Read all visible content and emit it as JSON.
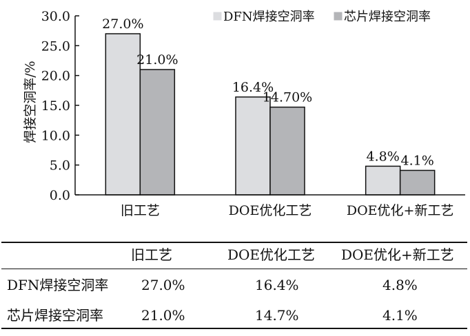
{
  "chart_data": {
    "type": "bar",
    "categories": [
      "旧工艺",
      "DOE优化工艺",
      "DOE优化+新工艺"
    ],
    "series": [
      {
        "name": "DFN焊接空洞率",
        "values": [
          27.0,
          16.4,
          4.8
        ],
        "labels": [
          "27.0%",
          "16.4%",
          "4.8%"
        ],
        "color": "#dcdde0"
      },
      {
        "name": "芯片焊接空洞率",
        "values": [
          21.0,
          14.7,
          4.1
        ],
        "labels": [
          "21.0%",
          "14.70%",
          "4.1%"
        ],
        "color": "#b4b5b8"
      }
    ],
    "ylabel": "焊接空洞率/%",
    "xlabel": "",
    "ylim": [
      0,
      30
    ],
    "yticks": [
      "0.0",
      "5.0",
      "10.0",
      "15.0",
      "20.0",
      "25.0",
      "30.0"
    ],
    "grid": false,
    "legend": "top-right"
  },
  "table": {
    "headers": [
      "旧工艺",
      "DOE优化工艺",
      "DOE优化+新工艺"
    ],
    "rows": [
      {
        "name": "DFN焊接空洞率",
        "values": [
          "27.0%",
          "16.4%",
          "4.8%"
        ]
      },
      {
        "name": "芯片焊接空洞率",
        "values": [
          "21.0%",
          "14.7%",
          "4.1%"
        ]
      }
    ]
  }
}
